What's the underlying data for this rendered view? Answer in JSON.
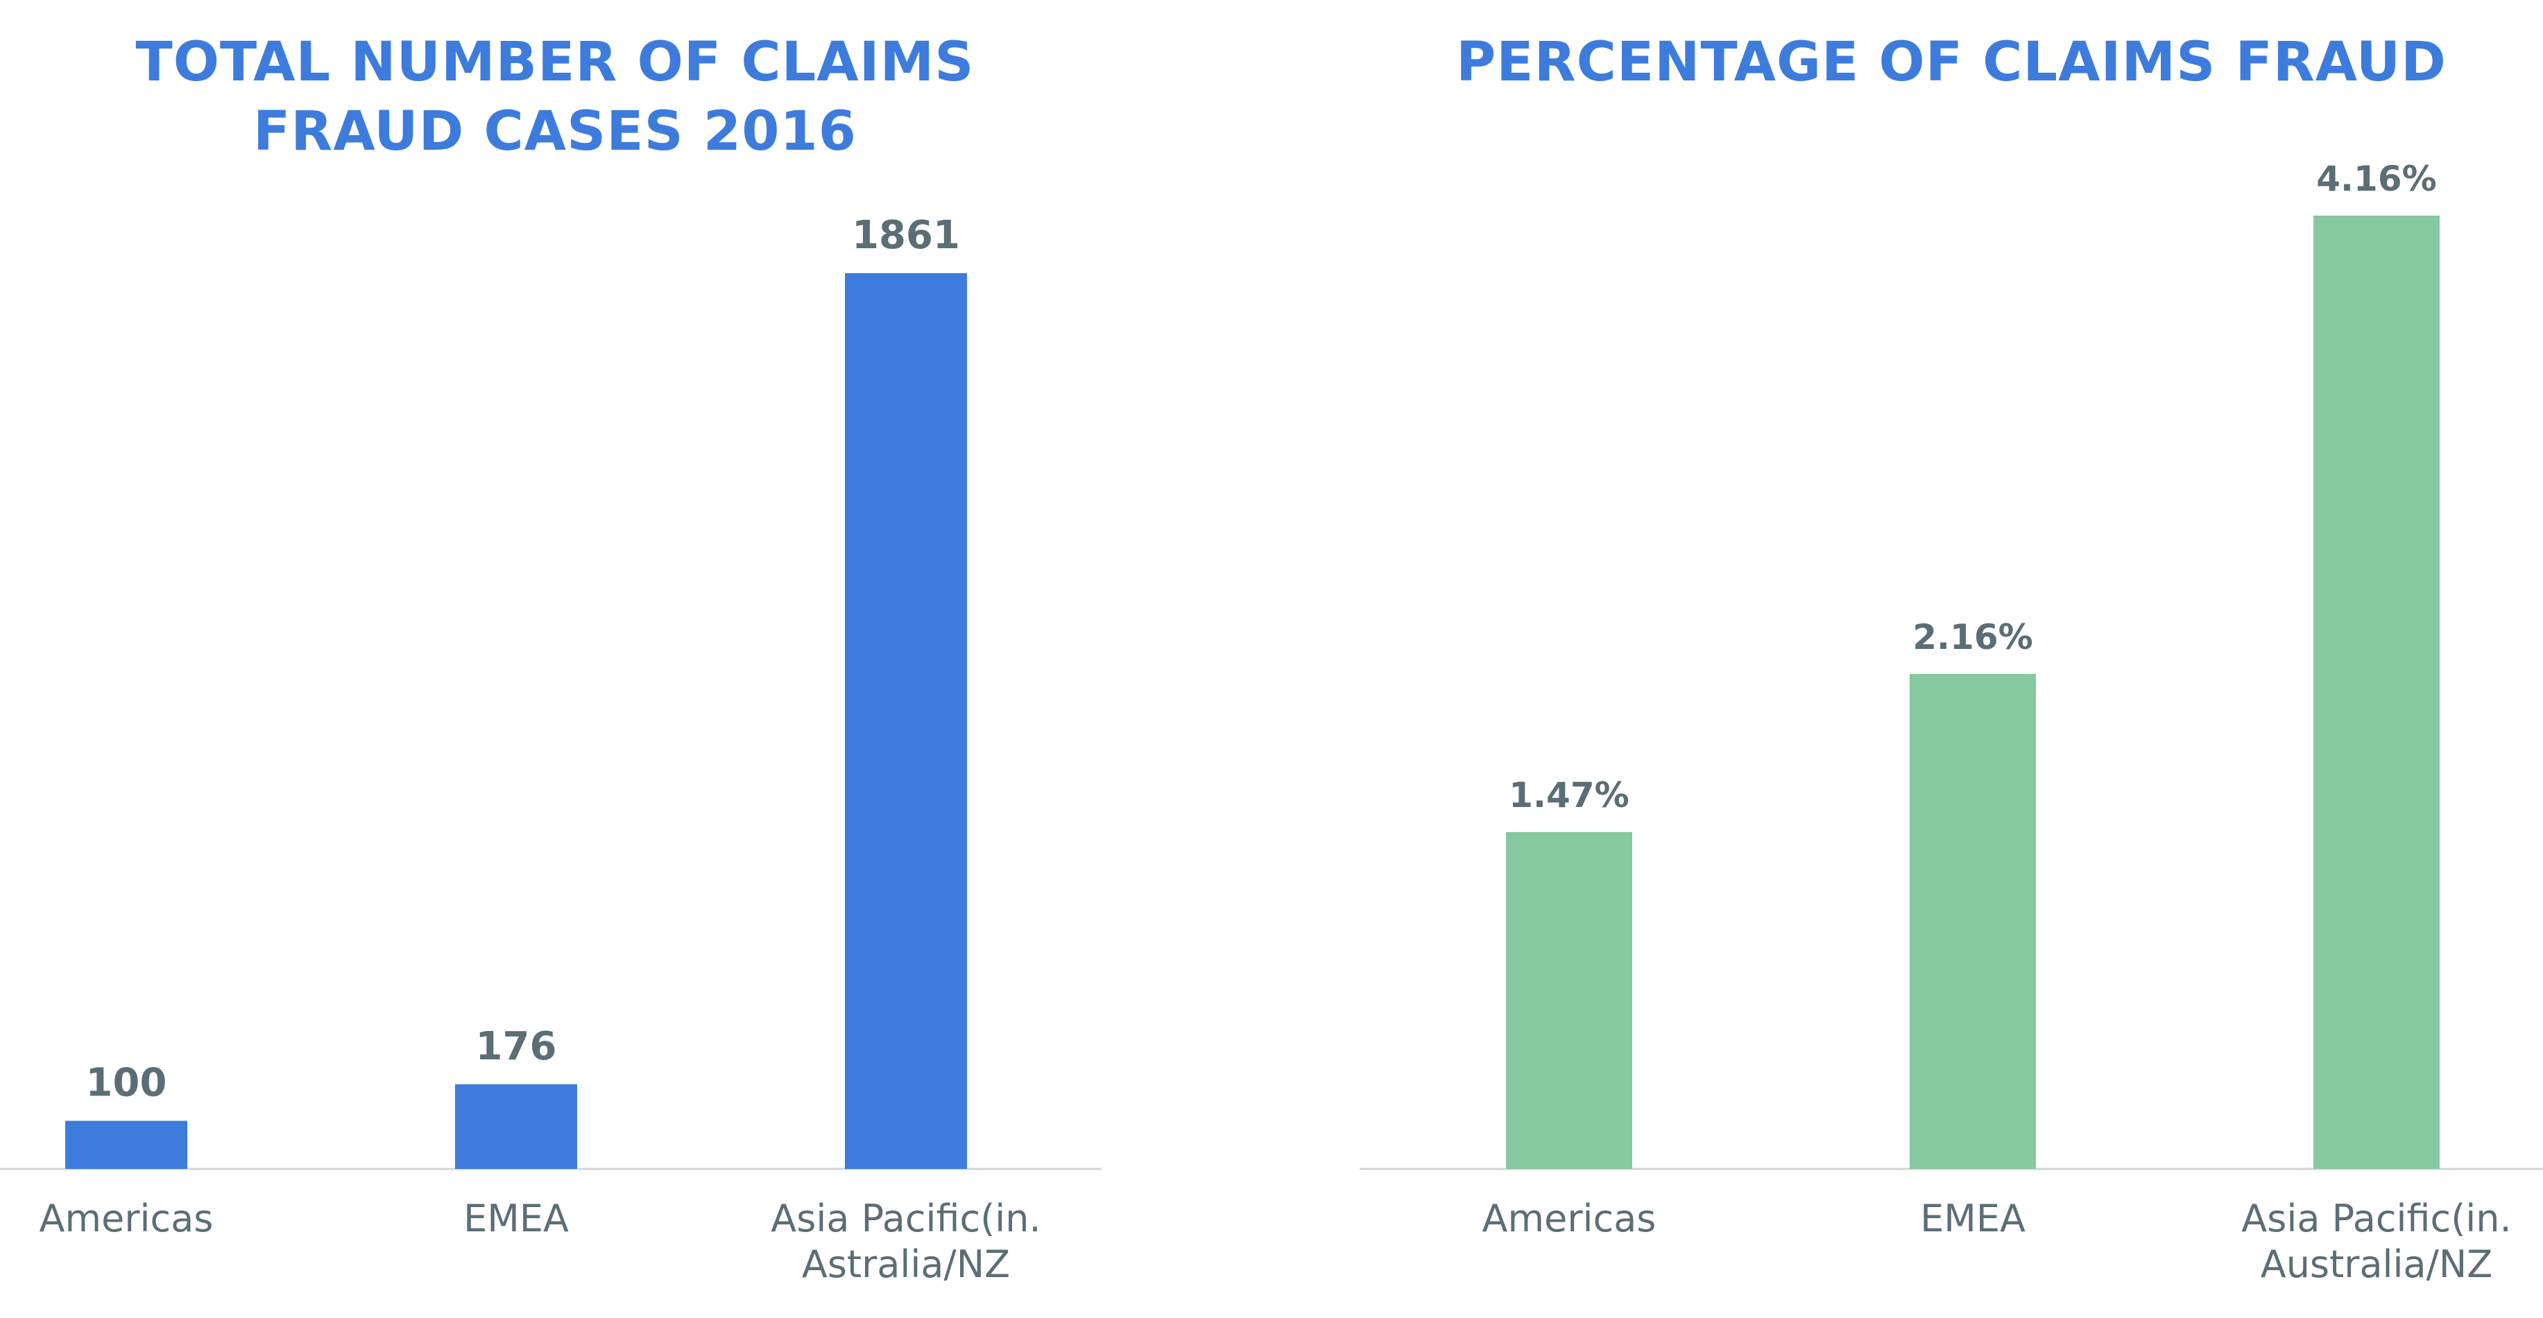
{
  "chart_data": [
    {
      "type": "bar",
      "title_lines": [
        "TOTAL NUMBER OF CLAIMS",
        "FRAUD CASES 2016"
      ],
      "categories": [
        [
          "Americas"
        ],
        [
          "EMEA"
        ],
        [
          "Asia Pacific(in.",
          "Astralia/NZ"
        ]
      ],
      "values": [
        100,
        176,
        1861
      ],
      "value_labels": [
        "100",
        "176",
        "1861"
      ],
      "color": "#3D7CDD",
      "xlabel": "",
      "ylabel": "",
      "ylim": [
        0,
        1861
      ],
      "grid": false
    },
    {
      "type": "bar",
      "title_lines": [
        "PERCENTAGE OF CLAIMS FRAUD"
      ],
      "categories": [
        [
          "Americas"
        ],
        [
          "EMEA"
        ],
        [
          "Asia Pacific(in.",
          "Australia/NZ"
        ]
      ],
      "values": [
        1.47,
        2.16,
        4.16
      ],
      "value_labels": [
        "1.47%",
        "2.16%",
        "4.16%"
      ],
      "color": "#86C89F",
      "xlabel": "",
      "ylabel": "",
      "ylim": [
        0,
        4.16
      ],
      "grid": false
    }
  ]
}
